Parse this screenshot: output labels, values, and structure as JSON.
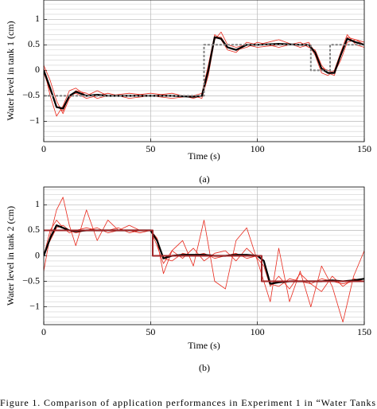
{
  "chart_data": [
    {
      "type": "line",
      "xlabel": "Time (s)",
      "ylabel": "Water level in tank 1 (cm)",
      "subcaption": "(a)",
      "xlim": [
        0,
        150
      ],
      "xticks": [
        0,
        50,
        100,
        150
      ],
      "ylim": [
        -1.4,
        1.38
      ],
      "yticks": [
        {
          "value": -1,
          "label": "−1"
        },
        {
          "value": -0.5,
          "label": "−0.5"
        },
        0,
        0.5,
        1
      ],
      "yminorticks": [
        -1.4,
        -1.3,
        -1.2,
        -1.1,
        -0.9,
        -0.8,
        -0.7,
        -0.6,
        -0.4,
        -0.3,
        -0.2,
        -0.1,
        0.1,
        0.2,
        0.3,
        0.4,
        0.6,
        0.7,
        0.8,
        0.9,
        1.1,
        1.2,
        1.3
      ],
      "grid": true,
      "series": [
        {
          "color": "#e8291c",
          "style": "thin",
          "x": [
            0,
            3,
            6,
            9,
            12,
            15,
            20,
            25,
            30,
            40,
            50,
            60,
            70,
            74,
            77,
            80,
            83,
            86,
            90,
            95,
            100,
            110,
            120,
            124,
            127,
            130,
            133,
            136,
            139,
            142,
            146,
            150
          ],
          "values": [
            0.05,
            -0.5,
            -0.9,
            -0.7,
            -0.4,
            -0.35,
            -0.5,
            -0.4,
            -0.5,
            -0.45,
            -0.5,
            -0.55,
            -0.5,
            -0.45,
            0.1,
            0.7,
            0.6,
            0.4,
            0.35,
            0.55,
            0.5,
            0.6,
            0.45,
            0.5,
            0.3,
            -0.05,
            -0.1,
            0,
            0.35,
            0.7,
            0.5,
            0.45
          ]
        },
        {
          "color": "#e8291c",
          "style": "thin",
          "x": [
            0,
            3,
            6,
            9,
            12,
            15,
            20,
            25,
            30,
            40,
            50,
            60,
            70,
            74,
            77,
            80,
            83,
            86,
            90,
            95,
            100,
            110,
            120,
            124,
            127,
            130,
            133,
            136,
            139,
            142,
            146,
            150
          ],
          "values": [
            -0.05,
            -0.4,
            -0.7,
            -0.8,
            -0.5,
            -0.45,
            -0.55,
            -0.5,
            -0.45,
            -0.55,
            -0.5,
            -0.45,
            -0.55,
            -0.5,
            0.05,
            0.65,
            0.65,
            0.45,
            0.4,
            0.45,
            0.55,
            0.45,
            0.55,
            0.45,
            0.4,
            0.1,
            -0.05,
            -0.1,
            0.3,
            0.65,
            0.6,
            0.55
          ]
        },
        {
          "color": "#e8291c",
          "style": "thin",
          "x": [
            0,
            3,
            6,
            9,
            12,
            15,
            20,
            25,
            30,
            40,
            50,
            60,
            70,
            74,
            77,
            80,
            83,
            86,
            90,
            95,
            100,
            110,
            120,
            124,
            127,
            130,
            133,
            136,
            139,
            142,
            146,
            150
          ],
          "values": [
            0.1,
            -0.2,
            -0.6,
            -0.85,
            -0.55,
            -0.4,
            -0.45,
            -0.55,
            -0.5,
            -0.5,
            -0.45,
            -0.5,
            -0.5,
            -0.55,
            -0.1,
            0.6,
            0.75,
            0.5,
            0.45,
            0.5,
            0.45,
            0.5,
            0.5,
            0.55,
            0.35,
            0.05,
            0,
            -0.05,
            0.2,
            0.55,
            0.6,
            0.5
          ]
        },
        {
          "color": "#000000",
          "style": "thick",
          "x": [
            0,
            3,
            6,
            9,
            12,
            15,
            20,
            25,
            30,
            40,
            50,
            60,
            70,
            74,
            77,
            80,
            83,
            86,
            90,
            95,
            100,
            110,
            120,
            124,
            127,
            130,
            133,
            136,
            139,
            142,
            146,
            150
          ],
          "values": [
            0,
            -0.35,
            -0.72,
            -0.75,
            -0.5,
            -0.42,
            -0.5,
            -0.48,
            -0.5,
            -0.5,
            -0.5,
            -0.5,
            -0.52,
            -0.5,
            0,
            0.65,
            0.62,
            0.45,
            0.4,
            0.5,
            0.5,
            0.52,
            0.5,
            0.5,
            0.35,
            0.03,
            -0.05,
            -0.05,
            0.3,
            0.62,
            0.55,
            0.5
          ]
        },
        {
          "color": "#808080",
          "style": "dashed",
          "x": [
            0,
            75,
            75,
            125,
            125,
            134,
            134,
            150
          ],
          "values": [
            -0.5,
            -0.5,
            0.5,
            0.5,
            0,
            0,
            0.5,
            0.5
          ]
        }
      ]
    },
    {
      "type": "line",
      "xlabel": "Time (s)",
      "ylabel": "Water level in tank 2 (cm)",
      "subcaption": "(b)",
      "xlim": [
        0,
        150
      ],
      "xticks": [
        0,
        50,
        100,
        150
      ],
      "ylim": [
        -1.35,
        1.35
      ],
      "yticks": [
        {
          "value": -1,
          "label": "−1"
        },
        {
          "value": -0.5,
          "label": "−0.5"
        },
        0,
        0.5,
        1
      ],
      "yminorticks": [
        -1.3,
        -1.2,
        -1.1,
        -0.9,
        -0.8,
        -0.7,
        -0.6,
        -0.4,
        -0.3,
        -0.2,
        -0.1,
        0.1,
        0.2,
        0.3,
        0.4,
        0.6,
        0.7,
        0.8,
        0.9,
        1.1,
        1.2,
        1.3
      ],
      "grid": true,
      "series": [
        {
          "color": "#e8291c",
          "style": "thin",
          "x": [
            0,
            3,
            6,
            9,
            12,
            15,
            20,
            25,
            30,
            35,
            40,
            45,
            50,
            53,
            56,
            60,
            65,
            70,
            75,
            80,
            85,
            90,
            95,
            100,
            103,
            106,
            110,
            115,
            120,
            125,
            130,
            135,
            140,
            145,
            150
          ],
          "values": [
            -0.3,
            0.4,
            0.9,
            1.15,
            0.6,
            0.2,
            0.9,
            0.3,
            0.7,
            0.5,
            0.6,
            0.5,
            0.5,
            0.3,
            -0.35,
            0.1,
            0.3,
            -0.2,
            0.7,
            -0.5,
            -0.65,
            0.3,
            0.55,
            -0.1,
            -0.5,
            -0.9,
            0.15,
            -0.9,
            -0.3,
            -1.0,
            -0.2,
            -0.6,
            -1.3,
            -0.4,
            0.1
          ]
        },
        {
          "color": "#e8291c",
          "style": "thin",
          "x": [
            0,
            3,
            6,
            9,
            12,
            15,
            20,
            25,
            30,
            35,
            40,
            45,
            50,
            53,
            56,
            60,
            65,
            70,
            75,
            80,
            85,
            90,
            95,
            100,
            103,
            106,
            110,
            115,
            120,
            125,
            130,
            135,
            140,
            145,
            150
          ],
          "values": [
            0,
            0.5,
            0.7,
            0.55,
            0.45,
            0.5,
            0.55,
            0.5,
            0.5,
            0.55,
            0.45,
            0.5,
            0.5,
            0.2,
            -0.15,
            0.1,
            -0.05,
            0.15,
            -0.1,
            0.05,
            0.1,
            -0.1,
            0.15,
            -0.05,
            -0.2,
            -0.6,
            -0.4,
            -0.65,
            -0.35,
            -0.55,
            -0.7,
            -0.4,
            -0.6,
            -0.45,
            -0.5
          ]
        },
        {
          "color": "#e8291c",
          "style": "thin",
          "x": [
            0,
            3,
            6,
            9,
            12,
            15,
            20,
            25,
            30,
            35,
            40,
            45,
            50,
            53,
            56,
            60,
            65,
            70,
            75,
            80,
            85,
            90,
            95,
            100,
            103,
            106,
            110,
            115,
            120,
            125,
            130,
            135,
            140,
            145,
            150
          ],
          "values": [
            0.05,
            0.3,
            0.55,
            0.6,
            0.5,
            0.45,
            0.5,
            0.55,
            0.45,
            0.5,
            0.5,
            0.45,
            0.5,
            0.35,
            -0.05,
            -0.1,
            0.05,
            0,
            0.05,
            -0.05,
            0,
            0.05,
            -0.05,
            0,
            -0.1,
            -0.55,
            -0.6,
            -0.45,
            -0.5,
            -0.55,
            -0.45,
            -0.5,
            -0.55,
            -0.5,
            -0.45
          ]
        },
        {
          "color": "#000000",
          "style": "thick",
          "x": [
            0,
            3,
            6,
            9,
            12,
            15,
            20,
            25,
            30,
            35,
            40,
            45,
            50,
            53,
            56,
            60,
            65,
            70,
            75,
            80,
            85,
            90,
            95,
            100,
            103,
            106,
            110,
            115,
            120,
            125,
            130,
            135,
            140,
            145,
            150
          ],
          "values": [
            0,
            0.35,
            0.6,
            0.55,
            0.5,
            0.48,
            0.5,
            0.5,
            0.5,
            0.5,
            0.5,
            0.5,
            0.5,
            0.3,
            -0.05,
            0,
            0.02,
            0.02,
            0.02,
            0,
            0,
            0.02,
            0.02,
            0,
            -0.1,
            -0.55,
            -0.52,
            -0.5,
            -0.5,
            -0.5,
            -0.5,
            -0.48,
            -0.5,
            -0.48,
            -0.45
          ]
        },
        {
          "color": "#a0282a",
          "style": "step",
          "x": [
            0,
            51,
            51,
            102,
            102,
            150
          ],
          "values": [
            0.5,
            0.5,
            0,
            0,
            -0.5,
            -0.5
          ]
        }
      ]
    }
  ],
  "caption": "Figure 1.    Comparison of application performances in Experiment 1 in “Water Tanks"
}
